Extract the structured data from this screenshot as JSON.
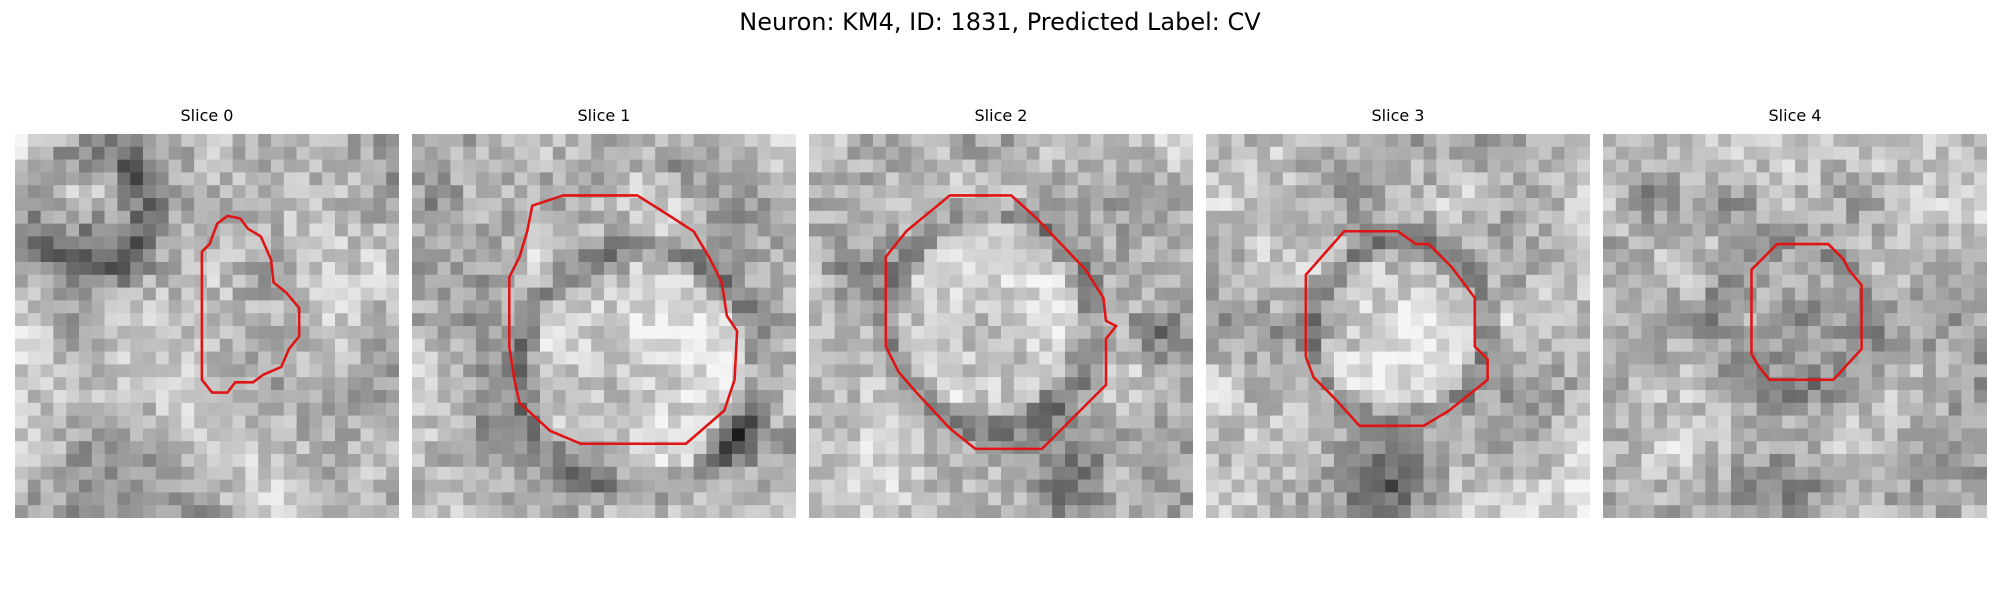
{
  "figure": {
    "title": "Neuron: KM4, ID: 1831, Predicted Label: CV"
  },
  "panels": [
    {
      "title": "Slice 0",
      "seed": 11,
      "bright_center": false
    },
    {
      "title": "Slice 1",
      "seed": 23,
      "bright_center": true
    },
    {
      "title": "Slice 2",
      "seed": 37,
      "bright_center": true
    },
    {
      "title": "Slice 3",
      "seed": 41,
      "bright_center": true
    },
    {
      "title": "Slice 4",
      "seed": 53,
      "bright_center": false
    }
  ],
  "colors": {
    "contour": "#e01414",
    "background": "#ffffff"
  }
}
